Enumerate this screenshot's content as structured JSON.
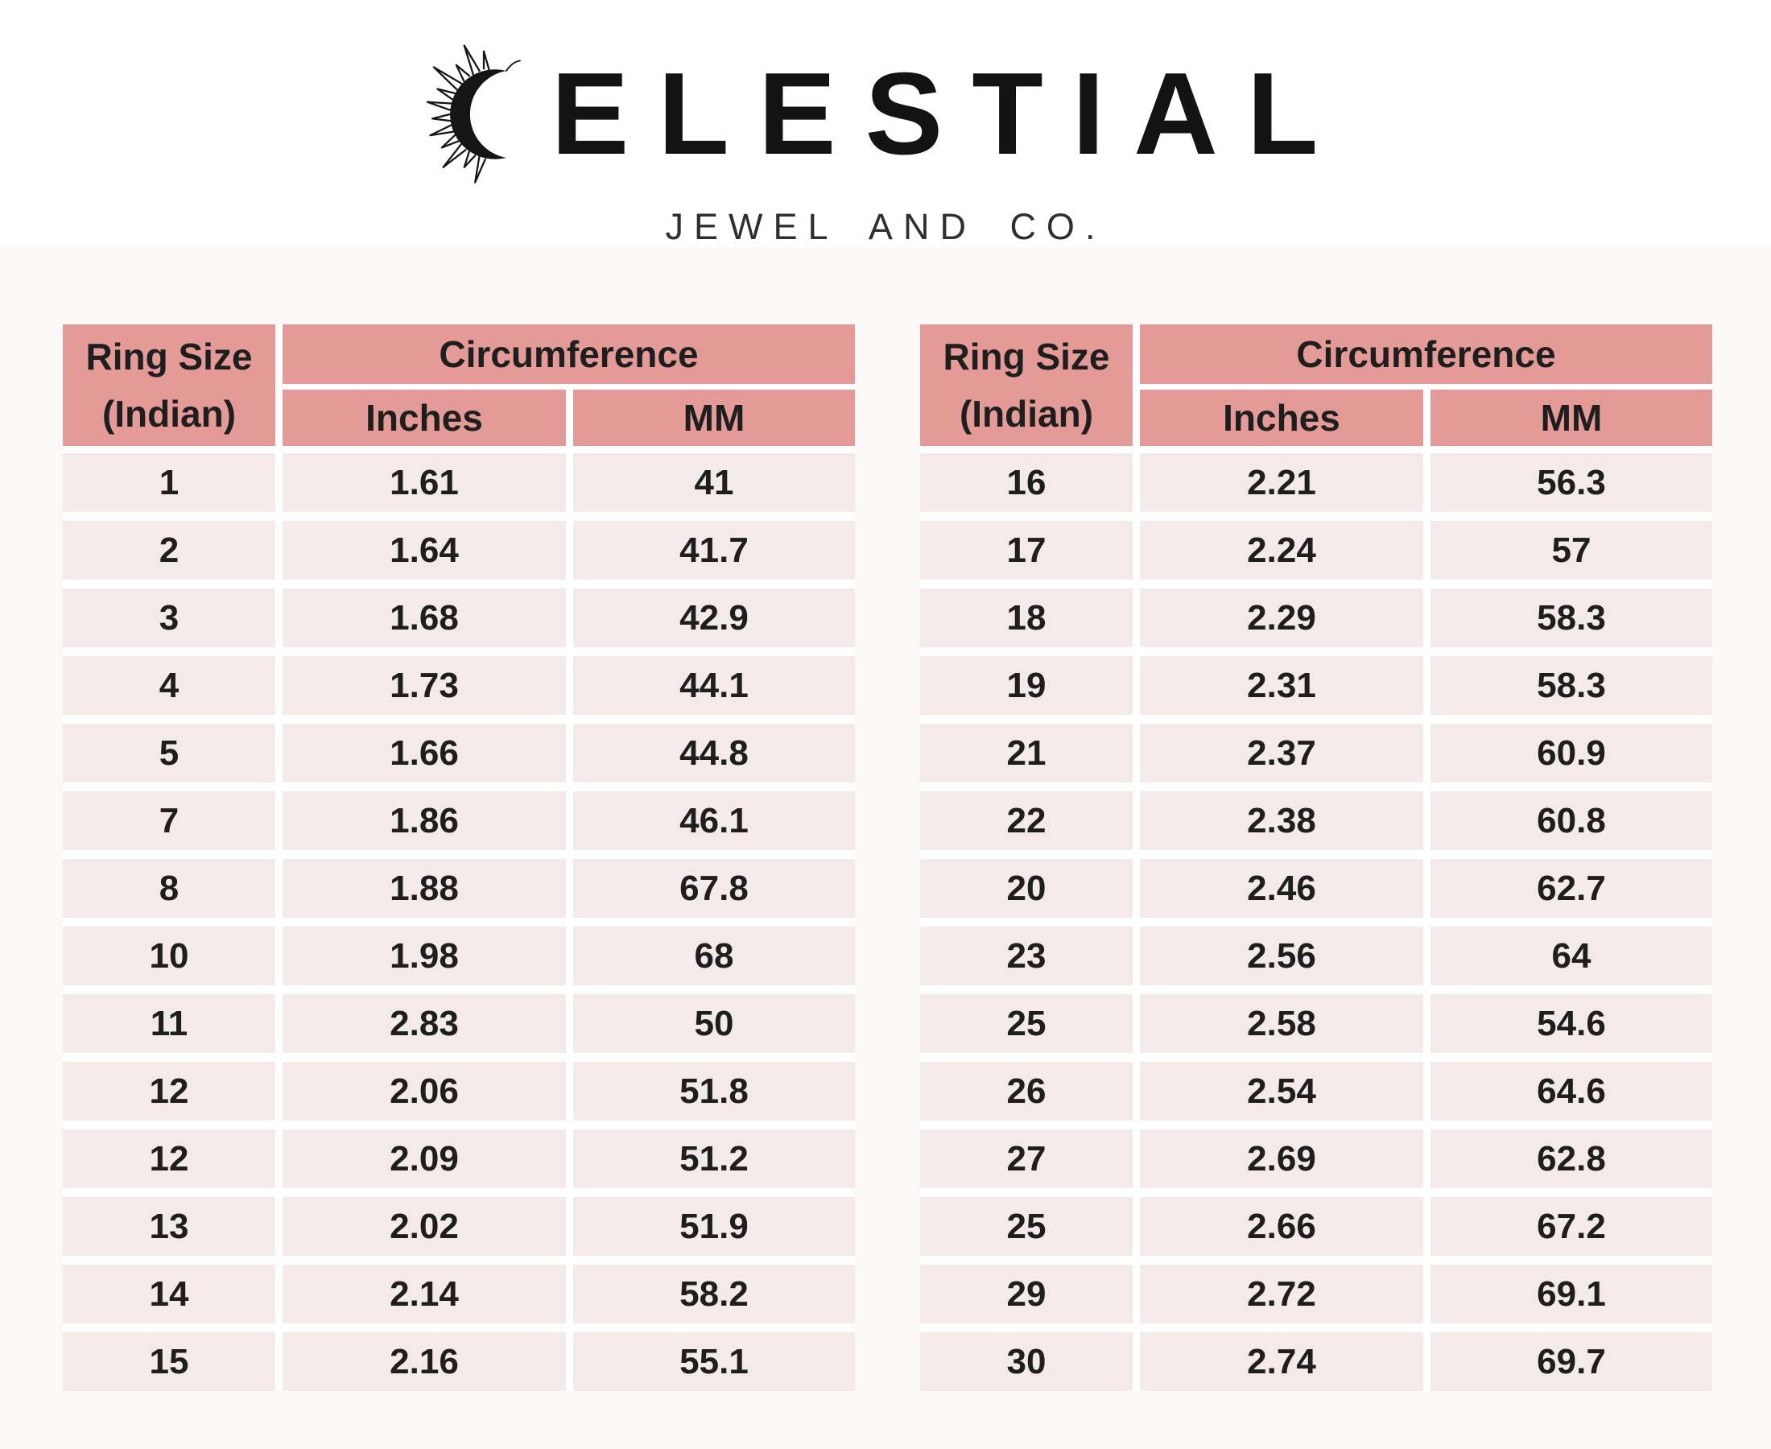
{
  "logo": {
    "icon": "sun-crescent-icon",
    "brand_name": "CELESTIAL",
    "wordmark_letters": "ELESTIAL",
    "subtitle": "JEWEL AND CO."
  },
  "colors": {
    "header_bg": "#e49a96",
    "row_bg": "#f4eae9",
    "separator": "#ffffff",
    "panel_bg": "#fbf9f8",
    "text": "#1e1e1e"
  },
  "tables": [
    {
      "header": {
        "col1_line1": "Ring Size",
        "col1_line2": "(Indian)",
        "group": "Circumference",
        "sub_inches": "Inches",
        "sub_mm": "MM"
      },
      "rows": [
        [
          "1",
          "1.61",
          "41"
        ],
        [
          "2",
          "1.64",
          "41.7"
        ],
        [
          "3",
          "1.68",
          "42.9"
        ],
        [
          "4",
          "1.73",
          "44.1"
        ],
        [
          "5",
          "1.66",
          "44.8"
        ],
        [
          "7",
          "1.86",
          "46.1"
        ],
        [
          "8",
          "1.88",
          "67.8"
        ],
        [
          "10",
          "1.98",
          "68"
        ],
        [
          "11",
          "2.83",
          "50"
        ],
        [
          "12",
          "2.06",
          "51.8"
        ],
        [
          "12",
          "2.09",
          "51.2"
        ],
        [
          "13",
          "2.02",
          "51.9"
        ],
        [
          "14",
          "2.14",
          "58.2"
        ],
        [
          "15",
          "2.16",
          "55.1"
        ]
      ]
    },
    {
      "header": {
        "col1_line1": "Ring Size",
        "col1_line2": "(Indian)",
        "group": "Circumference",
        "sub_inches": "Inches",
        "sub_mm": "MM"
      },
      "rows": [
        [
          "16",
          "2.21",
          "56.3"
        ],
        [
          "17",
          "2.24",
          "57"
        ],
        [
          "18",
          "2.29",
          "58.3"
        ],
        [
          "19",
          "2.31",
          "58.3"
        ],
        [
          "21",
          "2.37",
          "60.9"
        ],
        [
          "22",
          "2.38",
          "60.8"
        ],
        [
          "20",
          "2.46",
          "62.7"
        ],
        [
          "23",
          "2.56",
          "64"
        ],
        [
          "25",
          "2.58",
          "54.6"
        ],
        [
          "26",
          "2.54",
          "64.6"
        ],
        [
          "27",
          "2.69",
          "62.8"
        ],
        [
          "25",
          "2.66",
          "67.2"
        ],
        [
          "29",
          "2.72",
          "69.1"
        ],
        [
          "30",
          "2.74",
          "69.7"
        ]
      ]
    }
  ],
  "chart_data": [
    {
      "type": "table",
      "title": "Ring Size (Indian) - Circumference",
      "columns": [
        "Ring Size (Indian)",
        "Circumference Inches",
        "Circumference MM"
      ],
      "rows": [
        [
          1,
          1.61,
          41
        ],
        [
          2,
          1.64,
          41.7
        ],
        [
          3,
          1.68,
          42.9
        ],
        [
          4,
          1.73,
          44.1
        ],
        [
          5,
          1.66,
          44.8
        ],
        [
          7,
          1.86,
          46.1
        ],
        [
          8,
          1.88,
          67.8
        ],
        [
          10,
          1.98,
          68
        ],
        [
          11,
          2.83,
          50
        ],
        [
          12,
          2.06,
          51.8
        ],
        [
          12,
          2.09,
          51.2
        ],
        [
          13,
          2.02,
          51.9
        ],
        [
          14,
          2.14,
          58.2
        ],
        [
          15,
          2.16,
          55.1
        ]
      ]
    },
    {
      "type": "table",
      "title": "Ring Size (Indian) - Circumference",
      "columns": [
        "Ring Size (Indian)",
        "Circumference Inches",
        "Circumference MM"
      ],
      "rows": [
        [
          16,
          2.21,
          56.3
        ],
        [
          17,
          2.24,
          57
        ],
        [
          18,
          2.29,
          58.3
        ],
        [
          19,
          2.31,
          58.3
        ],
        [
          21,
          2.37,
          60.9
        ],
        [
          22,
          2.38,
          60.8
        ],
        [
          20,
          2.46,
          62.7
        ],
        [
          23,
          2.56,
          64
        ],
        [
          25,
          2.58,
          54.6
        ],
        [
          26,
          2.54,
          64.6
        ],
        [
          27,
          2.69,
          62.8
        ],
        [
          25,
          2.66,
          67.2
        ],
        [
          29,
          2.72,
          69.1
        ],
        [
          30,
          2.74,
          69.7
        ]
      ]
    }
  ]
}
